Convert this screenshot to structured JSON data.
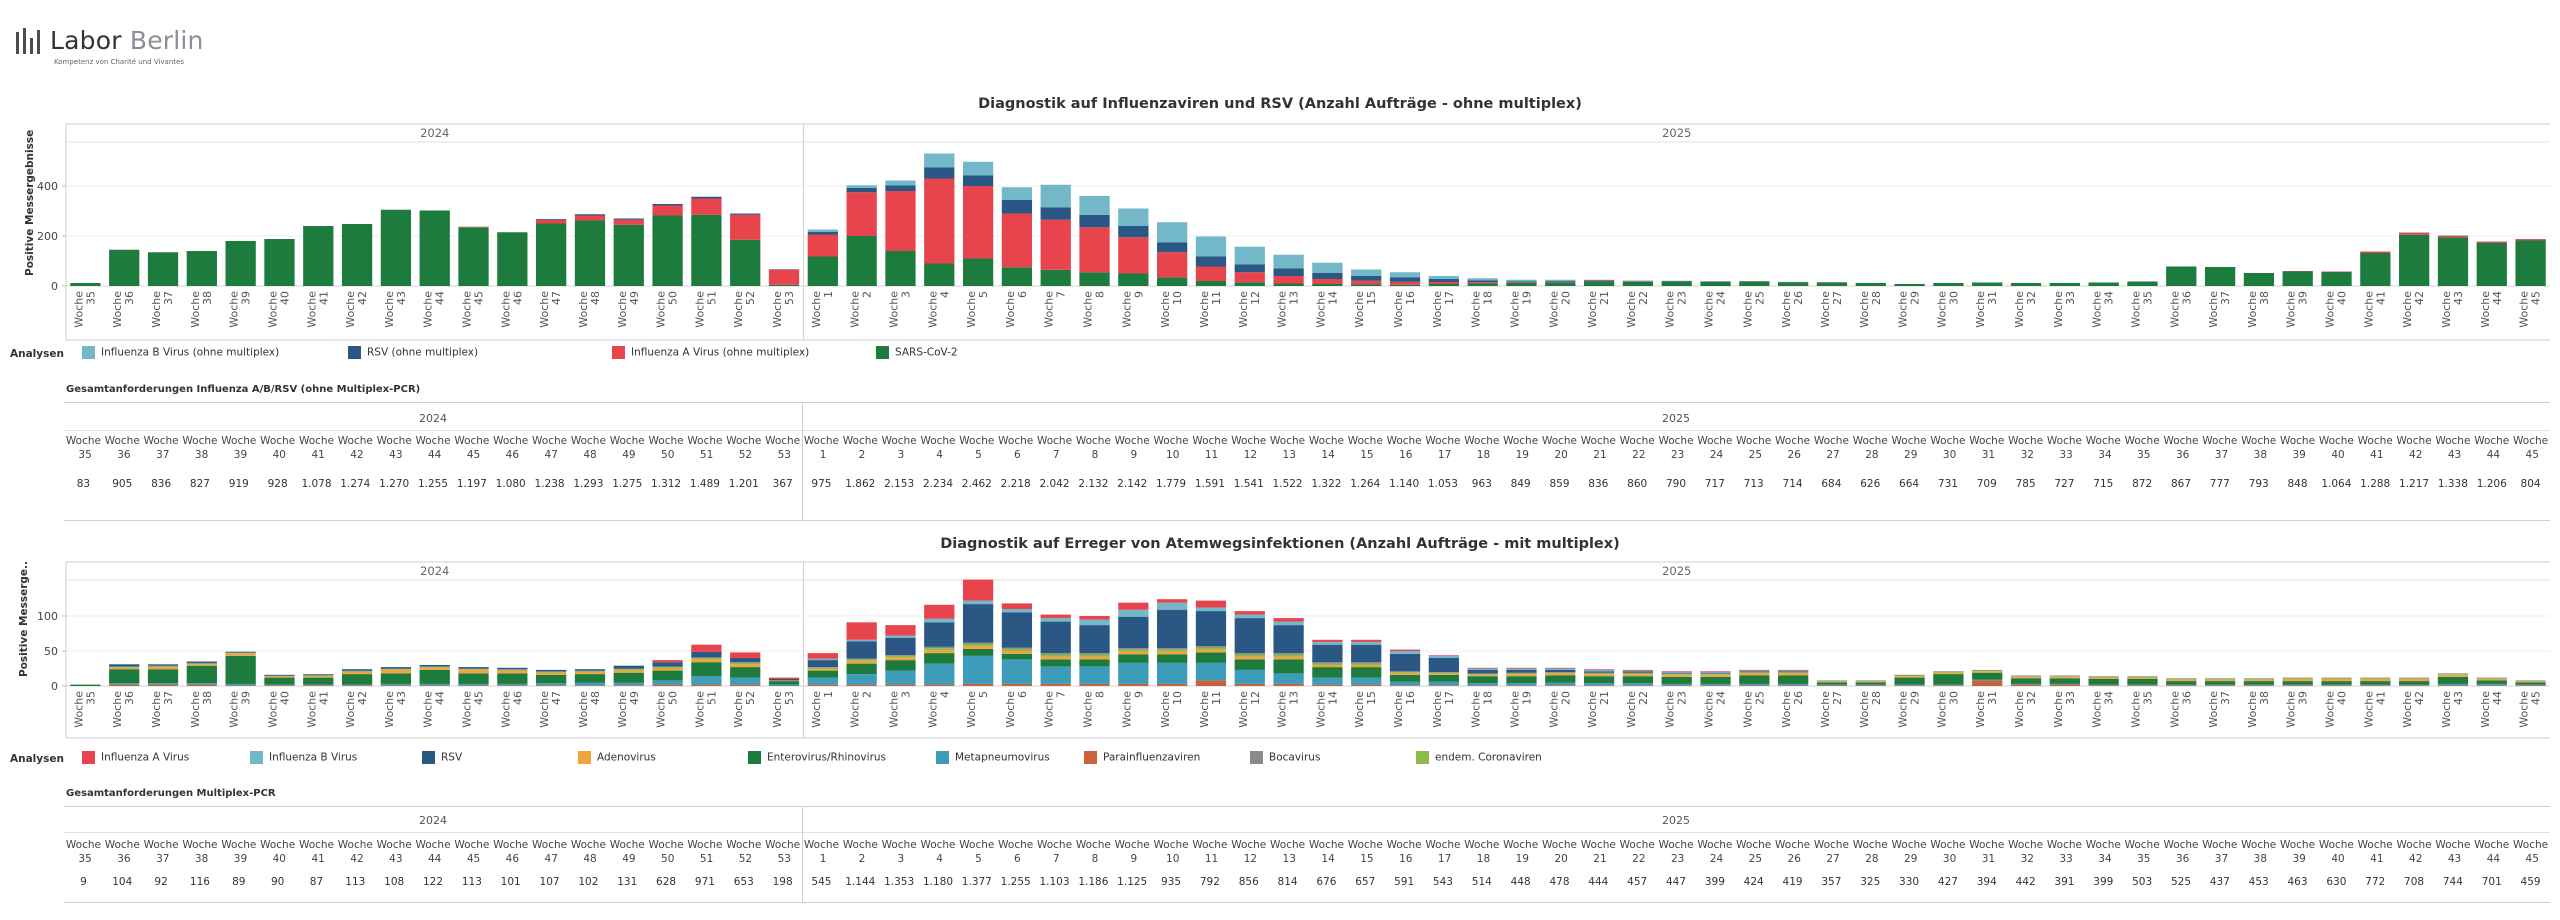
{
  "logo": {
    "name_part1": "Labor",
    "name_part2": "Berlin",
    "tagline": "Kompetenz von Charité und Vivantes"
  },
  "weeks": [
    "Woche 35",
    "Woche 36",
    "Woche 37",
    "Woche 38",
    "Woche 39",
    "Woche 40",
    "Woche 41",
    "Woche 42",
    "Woche 43",
    "Woche 44",
    "Woche 45",
    "Woche 46",
    "Woche 47",
    "Woche 48",
    "Woche 49",
    "Woche 50",
    "Woche 51",
    "Woche 52",
    "Woche 53",
    "Woche 1",
    "Woche 2",
    "Woche 3",
    "Woche 4",
    "Woche 5",
    "Woche 6",
    "Woche 7",
    "Woche 8",
    "Woche 9",
    "Woche 10",
    "Woche 11",
    "Woche 12",
    "Woche 13",
    "Woche 14",
    "Woche 15",
    "Woche 16",
    "Woche 17",
    "Woche 18",
    "Woche 19",
    "Woche 20",
    "Woche 21",
    "Woche 22",
    "Woche 23",
    "Woche 24",
    "Woche 25",
    "Woche 26",
    "Woche 27",
    "Woche 28",
    "Woche 29",
    "Woche 30",
    "Woche 31",
    "Woche 32",
    "Woche 33",
    "Woche 34",
    "Woche 35",
    "Woche 36",
    "Woche 37",
    "Woche 38",
    "Woche 39",
    "Woche 40",
    "Woche 41",
    "Woche 42",
    "Woche 43",
    "Woche 44",
    "Woche 45"
  ],
  "legend_title": "Analysen",
  "chart1": {
    "title": "Diagnostik auf Influenzaviren und RSV (Anzahl Aufträge - ohne multiplex)",
    "ylabel": "Positive Messergebnisse",
    "legend": [
      {
        "label": "Influenza B Virus (ohne multiplex)",
        "color": "#73b8c8"
      },
      {
        "label": "RSV (ohne multiplex)",
        "color": "#2a5783"
      },
      {
        "label": "Influenza A Virus (ohne multiplex)",
        "color": "#e8444d"
      },
      {
        "label": "SARS-CoV-2",
        "color": "#1e7b3e"
      }
    ]
  },
  "table1": {
    "title": "Gesamtanforderungen Influenza A/B/RSV (ohne Multiplex-PCR)",
    "values": [
      "83",
      "905",
      "836",
      "827",
      "919",
      "928",
      "1.078",
      "1.274",
      "1.270",
      "1.255",
      "1.197",
      "1.080",
      "1.238",
      "1.293",
      "1.275",
      "1.312",
      "1.489",
      "1.201",
      "367",
      "975",
      "1.862",
      "2.153",
      "2.234",
      "2.462",
      "2.218",
      "2.042",
      "2.132",
      "2.142",
      "1.779",
      "1.591",
      "1.541",
      "1.522",
      "1.322",
      "1.264",
      "1.140",
      "1.053",
      "963",
      "849",
      "859",
      "836",
      "860",
      "790",
      "717",
      "713",
      "714",
      "684",
      "626",
      "664",
      "731",
      "709",
      "785",
      "727",
      "715",
      "872",
      "867",
      "777",
      "793",
      "848",
      "1.064",
      "1.288",
      "1.217",
      "1.338",
      "1.206",
      "804"
    ]
  },
  "chart2": {
    "title": "Diagnostik auf Erreger von Atemwegsinfektionen (Anzahl Aufträge - mit multiplex)",
    "ylabel": "Positive Messerge..",
    "legend": [
      {
        "label": "Influenza A Virus",
        "color": "#e8444d"
      },
      {
        "label": "Influenza B Virus",
        "color": "#73b8c8"
      },
      {
        "label": "RSV",
        "color": "#2a5783"
      },
      {
        "label": "Adenovirus",
        "color": "#f2a43a"
      },
      {
        "label": "Enterovirus/Rhinovirus",
        "color": "#1e7b3e"
      },
      {
        "label": "Metapneumovirus",
        "color": "#3d9cb9"
      },
      {
        "label": "Parainfluenzaviren",
        "color": "#c8633c"
      },
      {
        "label": "Bocavirus",
        "color": "#8a8a8a"
      },
      {
        "label": "endem. Coronaviren",
        "color": "#8cbb4c"
      }
    ]
  },
  "table2": {
    "title": "Gesamtanforderungen Multiplex-PCR",
    "values": [
      "9",
      "104",
      "92",
      "116",
      "89",
      "90",
      "87",
      "113",
      "108",
      "122",
      "113",
      "101",
      "107",
      "102",
      "131",
      "628",
      "971",
      "653",
      "198",
      "545",
      "1.144",
      "1.353",
      "1.180",
      "1.377",
      "1.255",
      "1.103",
      "1.186",
      "1.125",
      "935",
      "792",
      "856",
      "814",
      "676",
      "657",
      "591",
      "543",
      "514",
      "448",
      "478",
      "444",
      "457",
      "447",
      "399",
      "424",
      "419",
      "357",
      "325",
      "330",
      "427",
      "394",
      "442",
      "391",
      "399",
      "503",
      "525",
      "437",
      "453",
      "463",
      "630",
      "772",
      "708",
      "744",
      "701",
      "459"
    ]
  },
  "chart_data": [
    {
      "type": "bar",
      "stacked": true,
      "title": "Diagnostik auf Influenzaviren und RSV (Anzahl Aufträge - ohne multiplex)",
      "ylabel": "Positive Messergebnisse",
      "ylim": [
        0,
        560
      ],
      "yticks": [
        0,
        200,
        400
      ],
      "year_groups": [
        {
          "label": "2024",
          "start": 0,
          "end": 18
        },
        {
          "label": "2025",
          "start": 19,
          "end": 63
        }
      ],
      "series": [
        {
          "name": "SARS-CoV-2",
          "color": "#1e7b3e",
          "values": [
            12,
            145,
            135,
            140,
            180,
            188,
            240,
            248,
            305,
            302,
            235,
            215,
            250,
            262,
            245,
            282,
            285,
            185,
            5,
            118,
            200,
            140,
            90,
            110,
            75,
            65,
            55,
            50,
            35,
            20,
            15,
            10,
            8,
            6,
            5,
            8,
            10,
            12,
            15,
            18,
            17,
            18,
            17,
            18,
            15,
            14,
            12,
            8,
            12,
            14,
            12,
            12,
            14,
            18,
            78,
            76,
            52,
            58,
            56,
            132,
            205,
            195,
            172,
            182
          ]
        },
        {
          "name": "Influenza A Virus (ohne multiplex)",
          "color": "#e8444d",
          "values": [
            0,
            0,
            0,
            0,
            0,
            0,
            0,
            0,
            0,
            0,
            2,
            0,
            15,
            20,
            20,
            40,
            65,
            100,
            60,
            88,
            175,
            240,
            340,
            290,
            215,
            200,
            180,
            145,
            100,
            58,
            40,
            30,
            20,
            15,
            12,
            8,
            5,
            3,
            2,
            2,
            2,
            1,
            1,
            1,
            1,
            1,
            0,
            0,
            0,
            0,
            0,
            0,
            0,
            0,
            0,
            0,
            0,
            2,
            2,
            6,
            8,
            6,
            5,
            5
          ]
        },
        {
          "name": "RSV (ohne multiplex)",
          "color": "#2a5783",
          "values": [
            0,
            0,
            0,
            0,
            0,
            0,
            0,
            0,
            0,
            0,
            0,
            0,
            3,
            5,
            5,
            6,
            7,
            5,
            2,
            10,
            18,
            22,
            45,
            42,
            55,
            50,
            50,
            45,
            40,
            40,
            32,
            30,
            25,
            20,
            18,
            12,
            8,
            4,
            3,
            2,
            1,
            1,
            1,
            0,
            0,
            0,
            0,
            0,
            0,
            0,
            0,
            0,
            0,
            0,
            0,
            0,
            0,
            0,
            0,
            0,
            1,
            1,
            1,
            1
          ]
        },
        {
          "name": "Influenza B Virus (ohne multiplex)",
          "color": "#73b8c8",
          "values": [
            0,
            0,
            0,
            0,
            0,
            0,
            0,
            0,
            0,
            0,
            0,
            0,
            0,
            0,
            0,
            0,
            0,
            0,
            0,
            10,
            10,
            20,
            55,
            55,
            50,
            90,
            75,
            70,
            80,
            80,
            70,
            55,
            40,
            25,
            20,
            12,
            8,
            6,
            5,
            3,
            2,
            1,
            1,
            1,
            1,
            1,
            0,
            0,
            0,
            0,
            0,
            0,
            0,
            0,
            0,
            0,
            0,
            0,
            0,
            0,
            0,
            0,
            0,
            0
          ]
        }
      ]
    },
    {
      "type": "bar",
      "stacked": true,
      "title": "Diagnostik auf Erreger von Atemwegsinfektionen (Anzahl Aufträge - mit multiplex)",
      "ylabel": "Positive Messerge..",
      "ylim": [
        0,
        140
      ],
      "yticks": [
        0,
        50,
        100
      ],
      "year_groups": [
        {
          "label": "2024",
          "start": 0,
          "end": 18
        },
        {
          "label": "2025",
          "start": 19,
          "end": 63
        }
      ],
      "series": [
        {
          "name": "Parainfluenzaviren",
          "color": "#c8633c",
          "values": [
            0,
            2,
            2,
            2,
            1,
            1,
            1,
            1,
            1,
            1,
            1,
            1,
            1,
            1,
            1,
            2,
            2,
            2,
            0,
            2,
            2,
            2,
            2,
            3,
            3,
            3,
            3,
            3,
            3,
            8,
            3,
            3,
            2,
            2,
            1,
            1,
            1,
            1,
            1,
            1,
            1,
            1,
            1,
            1,
            1,
            1,
            1,
            1,
            1,
            8,
            2,
            2,
            1,
            1,
            1,
            1,
            1,
            1,
            1,
            1,
            1,
            1,
            1,
            1
          ]
        },
        {
          "name": "Metapneumovirus",
          "color": "#3d9cb9",
          "values": [
            0,
            2,
            2,
            2,
            2,
            1,
            1,
            1,
            2,
            2,
            2,
            2,
            3,
            4,
            4,
            6,
            12,
            10,
            2,
            10,
            15,
            20,
            30,
            40,
            35,
            25,
            25,
            30,
            30,
            25,
            20,
            15,
            10,
            10,
            5,
            5,
            3,
            3,
            4,
            3,
            3,
            2,
            2,
            2,
            2,
            1,
            1,
            1,
            1,
            1,
            1,
            1,
            1,
            1,
            1,
            1,
            1,
            1,
            1,
            1,
            1,
            2,
            2,
            1
          ]
        },
        {
          "name": "Enterovirus/Rhinovirus",
          "color": "#1e7b3e",
          "values": [
            2,
            20,
            20,
            25,
            40,
            10,
            10,
            15,
            15,
            20,
            15,
            15,
            12,
            12,
            14,
            14,
            20,
            15,
            5,
            10,
            15,
            15,
            15,
            10,
            8,
            10,
            10,
            12,
            12,
            15,
            15,
            20,
            15,
            15,
            10,
            10,
            10,
            10,
            10,
            10,
            10,
            10,
            10,
            12,
            12,
            3,
            3,
            10,
            15,
            10,
            8,
            8,
            8,
            8,
            5,
            5,
            5,
            5,
            5,
            5,
            5,
            10,
            5,
            3
          ]
        },
        {
          "name": "Adenovirus",
          "color": "#f2a43a",
          "values": [
            0,
            2,
            3,
            2,
            3,
            2,
            2,
            3,
            5,
            3,
            5,
            4,
            3,
            3,
            3,
            3,
            4,
            4,
            1,
            2,
            4,
            4,
            4,
            4,
            4,
            4,
            4,
            4,
            4,
            4,
            4,
            4,
            3,
            3,
            3,
            2,
            2,
            3,
            3,
            3,
            3,
            3,
            3,
            3,
            3,
            1,
            1,
            2,
            2,
            2,
            2,
            2,
            2,
            2,
            2,
            2,
            2,
            3,
            3,
            3,
            3,
            3,
            2,
            1
          ]
        },
        {
          "name": "endem. Coronaviren",
          "color": "#8cbb4c",
          "values": [
            0,
            1,
            1,
            1,
            1,
            0,
            1,
            1,
            1,
            1,
            1,
            1,
            1,
            1,
            2,
            2,
            2,
            2,
            0,
            2,
            2,
            2,
            3,
            3,
            3,
            3,
            3,
            3,
            3,
            3,
            3,
            3,
            2,
            2,
            1,
            1,
            1,
            1,
            1,
            1,
            1,
            1,
            1,
            1,
            1,
            1,
            1,
            1,
            1,
            1,
            1,
            1,
            1,
            1,
            1,
            1,
            1,
            1,
            1,
            1,
            1,
            1,
            1,
            1
          ]
        },
        {
          "name": "Bocavirus",
          "color": "#8a8a8a",
          "values": [
            0,
            1,
            1,
            1,
            1,
            1,
            1,
            1,
            1,
            1,
            1,
            1,
            1,
            1,
            1,
            1,
            1,
            1,
            0,
            1,
            1,
            1,
            2,
            2,
            2,
            2,
            2,
            2,
            2,
            2,
            2,
            2,
            2,
            2,
            1,
            1,
            1,
            1,
            1,
            1,
            1,
            1,
            1,
            1,
            1,
            1,
            1,
            1,
            1,
            1,
            1,
            1,
            1,
            1,
            1,
            1,
            1,
            1,
            1,
            1,
            1,
            1,
            1,
            1
          ]
        },
        {
          "name": "RSV",
          "color": "#2a5783",
          "values": [
            0,
            3,
            2,
            2,
            1,
            1,
            1,
            2,
            2,
            2,
            2,
            2,
            2,
            2,
            4,
            6,
            8,
            6,
            2,
            10,
            25,
            25,
            35,
            55,
            50,
            45,
            40,
            45,
            55,
            50,
            50,
            40,
            25,
            25,
            25,
            20,
            5,
            4,
            3,
            2,
            2,
            1,
            1,
            1,
            1,
            0,
            0,
            0,
            0,
            0,
            0,
            0,
            0,
            0,
            0,
            0,
            0,
            0,
            0,
            0,
            0,
            0,
            0,
            0
          ]
        },
        {
          "name": "Influenza B Virus",
          "color": "#73b8c8",
          "values": [
            0,
            0,
            0,
            0,
            0,
            0,
            0,
            0,
            0,
            0,
            0,
            0,
            0,
            0,
            0,
            0,
            0,
            0,
            0,
            2,
            2,
            3,
            5,
            5,
            5,
            5,
            8,
            10,
            10,
            5,
            5,
            5,
            4,
            4,
            4,
            3,
            2,
            2,
            2,
            2,
            1,
            1,
            1,
            1,
            1,
            0,
            0,
            0,
            0,
            0,
            0,
            0,
            0,
            0,
            0,
            0,
            0,
            0,
            0,
            0,
            0,
            0,
            0,
            0
          ]
        },
        {
          "name": "Influenza A Virus",
          "color": "#e8444d",
          "values": [
            0,
            0,
            0,
            0,
            0,
            0,
            0,
            0,
            0,
            0,
            0,
            0,
            0,
            0,
            0,
            3,
            10,
            8,
            2,
            8,
            25,
            15,
            20,
            30,
            8,
            5,
            5,
            10,
            5,
            10,
            5,
            5,
            3,
            3,
            2,
            1,
            1,
            1,
            1,
            1,
            1,
            1,
            1,
            1,
            1,
            0,
            0,
            0,
            0,
            0,
            0,
            0,
            0,
            0,
            0,
            0,
            0,
            0,
            0,
            0,
            0,
            0,
            0,
            0
          ]
        }
      ]
    }
  ]
}
